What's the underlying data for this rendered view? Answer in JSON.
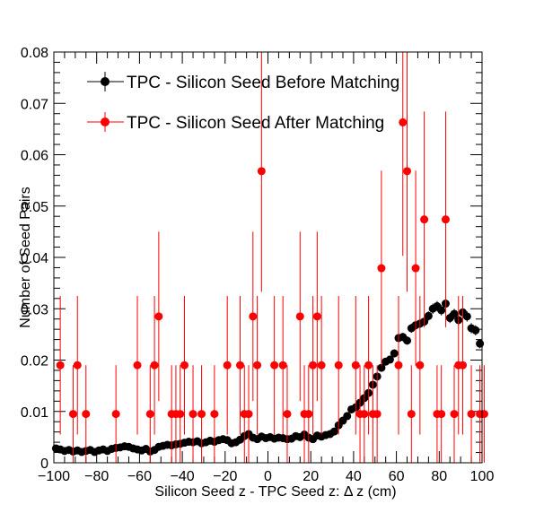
{
  "chart_data": {
    "type": "scatter",
    "title": "",
    "xlabel": "Silicon Seed z - TPC Seed z:   Δ z (cm)",
    "ylabel": "Number of Seed Pairs",
    "xlim": [
      -100,
      100
    ],
    "ylim": [
      0,
      0.08
    ],
    "x_ticks": [
      "−100",
      "−80",
      "−60",
      "−40",
      "−20",
      "0",
      "20",
      "40",
      "60",
      "80",
      "100"
    ],
    "y_ticks": [
      "0",
      "0.01",
      "0.02",
      "0.03",
      "0.04",
      "0.05",
      "0.06",
      "0.07",
      "0.08"
    ],
    "legend_position": "top-left",
    "grid": false,
    "series": [
      {
        "name": "TPC - Silicon Seed Before Matching",
        "color": "#000000",
        "points": [
          [
            -99,
            0.0028,
            0.0003
          ],
          [
            -97,
            0.0026,
            0.0003
          ],
          [
            -95,
            0.0023,
            0.0003
          ],
          [
            -93,
            0.0025,
            0.0003
          ],
          [
            -91,
            0.0022,
            0.0003
          ],
          [
            -89,
            0.0024,
            0.0003
          ],
          [
            -87,
            0.0021,
            0.0003
          ],
          [
            -85,
            0.0023,
            0.0003
          ],
          [
            -83,
            0.0025,
            0.0003
          ],
          [
            -81,
            0.0021,
            0.0003
          ],
          [
            -79,
            0.0024,
            0.0003
          ],
          [
            -77,
            0.0026,
            0.0003
          ],
          [
            -75,
            0.0023,
            0.0003
          ],
          [
            -73,
            0.0027,
            0.0003
          ],
          [
            -71,
            0.0029,
            0.0003
          ],
          [
            -69,
            0.003,
            0.0003
          ],
          [
            -67,
            0.0032,
            0.0003
          ],
          [
            -65,
            0.0031,
            0.0003
          ],
          [
            -63,
            0.0028,
            0.0003
          ],
          [
            -61,
            0.0026,
            0.0003
          ],
          [
            -59,
            0.0024,
            0.0003
          ],
          [
            -57,
            0.0027,
            0.0003
          ],
          [
            -55,
            0.0022,
            0.0003
          ],
          [
            -53,
            0.0025,
            0.0003
          ],
          [
            -51,
            0.0031,
            0.0003
          ],
          [
            -49,
            0.0033,
            0.0003
          ],
          [
            -47,
            0.0035,
            0.0003
          ],
          [
            -45,
            0.0034,
            0.0003
          ],
          [
            -43,
            0.0036,
            0.0003
          ],
          [
            -41,
            0.0037,
            0.0003
          ],
          [
            -39,
            0.0039,
            0.0003
          ],
          [
            -37,
            0.0041,
            0.0003
          ],
          [
            -35,
            0.004,
            0.0003
          ],
          [
            -33,
            0.0042,
            0.0003
          ],
          [
            -31,
            0.0038,
            0.0003
          ],
          [
            -29,
            0.004,
            0.0003
          ],
          [
            -27,
            0.0043,
            0.0003
          ],
          [
            -25,
            0.0041,
            0.0003
          ],
          [
            -23,
            0.0044,
            0.0003
          ],
          [
            -21,
            0.0046,
            0.0003
          ],
          [
            -19,
            0.0044,
            0.0003
          ],
          [
            -17,
            0.0038,
            0.0003
          ],
          [
            -15,
            0.004,
            0.0003
          ],
          [
            -13,
            0.0045,
            0.0003
          ],
          [
            -11,
            0.0052,
            0.0003
          ],
          [
            -9,
            0.0056,
            0.0003
          ],
          [
            -7,
            0.0049,
            0.0003
          ],
          [
            -5,
            0.0046,
            0.0003
          ],
          [
            -3,
            0.0051,
            0.0003
          ],
          [
            -1,
            0.0048,
            0.0003
          ],
          [
            1,
            0.005,
            0.0003
          ],
          [
            3,
            0.0047,
            0.0003
          ],
          [
            5,
            0.0049,
            0.0003
          ],
          [
            7,
            0.0048,
            0.0003
          ],
          [
            9,
            0.0046,
            0.0003
          ],
          [
            11,
            0.0047,
            0.0003
          ],
          [
            13,
            0.0052,
            0.0003
          ],
          [
            15,
            0.005,
            0.0003
          ],
          [
            17,
            0.0055,
            0.0003
          ],
          [
            19,
            0.0049,
            0.0003
          ],
          [
            21,
            0.0046,
            0.0003
          ],
          [
            23,
            0.0053,
            0.0003
          ],
          [
            25,
            0.0051,
            0.0003
          ],
          [
            27,
            0.0054,
            0.0003
          ],
          [
            29,
            0.0056,
            0.0003
          ],
          [
            31,
            0.0061,
            0.0004
          ],
          [
            33,
            0.0073,
            0.0004
          ],
          [
            35,
            0.0082,
            0.0004
          ],
          [
            37,
            0.0091,
            0.0004
          ],
          [
            39,
            0.0104,
            0.0005
          ],
          [
            41,
            0.0108,
            0.0005
          ],
          [
            43,
            0.0117,
            0.0005
          ],
          [
            45,
            0.0126,
            0.0005
          ],
          [
            47,
            0.0136,
            0.0006
          ],
          [
            49,
            0.0152,
            0.0006
          ],
          [
            51,
            0.0168,
            0.0006
          ],
          [
            53,
            0.0185,
            0.0007
          ],
          [
            55,
            0.0197,
            0.0007
          ],
          [
            57,
            0.0201,
            0.0007
          ],
          [
            59,
            0.0213,
            0.0008
          ],
          [
            61,
            0.0243,
            0.0008
          ],
          [
            63,
            0.0245,
            0.0008
          ],
          [
            65,
            0.0238,
            0.0008
          ],
          [
            67,
            0.0262,
            0.0009
          ],
          [
            69,
            0.0268,
            0.0009
          ],
          [
            71,
            0.0271,
            0.0009
          ],
          [
            73,
            0.0275,
            0.0009
          ],
          [
            75,
            0.0286,
            0.0009
          ],
          [
            77,
            0.03,
            0.001
          ],
          [
            79,
            0.0305,
            0.001
          ],
          [
            81,
            0.0297,
            0.001
          ],
          [
            83,
            0.031,
            0.001
          ],
          [
            85,
            0.0282,
            0.001
          ],
          [
            87,
            0.029,
            0.001
          ],
          [
            89,
            0.0278,
            0.001
          ],
          [
            91,
            0.0293,
            0.001
          ],
          [
            93,
            0.0285,
            0.001
          ],
          [
            95,
            0.0262,
            0.001
          ],
          [
            97,
            0.0258,
            0.001
          ],
          [
            99,
            0.0232,
            0.0009
          ]
        ]
      },
      {
        "name": "TPC - Silicon Seed After Matching",
        "color": "#ff0000",
        "points": [
          [
            -97,
            0.019,
            0.0135
          ],
          [
            -91,
            0.0095,
            0.0095
          ],
          [
            -89,
            0.019,
            0.0135
          ],
          [
            -85,
            0.0095,
            0.0095
          ],
          [
            -71,
            0.0095,
            0.0095
          ],
          [
            -61,
            0.019,
            0.0135
          ],
          [
            -55,
            0.0095,
            0.0095
          ],
          [
            -53,
            0.019,
            0.0135
          ],
          [
            -51,
            0.0285,
            0.0165
          ],
          [
            -45,
            0.0095,
            0.0095
          ],
          [
            -43,
            0.0095,
            0.0095
          ],
          [
            -41,
            0.0095,
            0.0095
          ],
          [
            -39,
            0.019,
            0.0135
          ],
          [
            -35,
            0.0095,
            0.0095
          ],
          [
            -31,
            0.0095,
            0.0095
          ],
          [
            -25,
            0.0095,
            0.0095
          ],
          [
            -19,
            0.019,
            0.0135
          ],
          [
            -13,
            0.019,
            0.0135
          ],
          [
            -11,
            0.0095,
            0.0095
          ],
          [
            -9,
            0.0095,
            0.0095
          ],
          [
            -7,
            0.0285,
            0.0165
          ],
          [
            -5,
            0.019,
            0.0135
          ],
          [
            -3,
            0.0568,
            0.0235
          ],
          [
            3,
            0.019,
            0.0135
          ],
          [
            7,
            0.019,
            0.0135
          ],
          [
            9,
            0.0095,
            0.0095
          ],
          [
            15,
            0.0285,
            0.0165
          ],
          [
            17,
            0.0095,
            0.0095
          ],
          [
            19,
            0.0095,
            0.0095
          ],
          [
            21,
            0.019,
            0.0135
          ],
          [
            23,
            0.0285,
            0.0165
          ],
          [
            25,
            0.019,
            0.0135
          ],
          [
            33,
            0.019,
            0.0135
          ],
          [
            41,
            0.019,
            0.0135
          ],
          [
            43,
            0.0095,
            0.0095
          ],
          [
            45,
            0.0095,
            0.0095
          ],
          [
            47,
            0.019,
            0.0135
          ],
          [
            49,
            0.0095,
            0.0095
          ],
          [
            51,
            0.0095,
            0.0095
          ],
          [
            53,
            0.0379,
            0.019
          ],
          [
            61,
            0.019,
            0.0135
          ],
          [
            63,
            0.0663,
            0.026
          ],
          [
            65,
            0.0568,
            0.0235
          ],
          [
            67,
            0.0095,
            0.0095
          ],
          [
            69,
            0.0379,
            0.019
          ],
          [
            71,
            0.019,
            0.0135
          ],
          [
            73,
            0.0474,
            0.021
          ],
          [
            79,
            0.0095,
            0.0095
          ],
          [
            81,
            0.0095,
            0.0095
          ],
          [
            83,
            0.0474,
            0.021
          ],
          [
            87,
            0.0095,
            0.0095
          ],
          [
            89,
            0.019,
            0.0135
          ],
          [
            91,
            0.019,
            0.0135
          ],
          [
            95,
            0.0095,
            0.0095
          ],
          [
            99,
            0.0095,
            0.0095
          ],
          [
            101,
            0.0095,
            0.0095
          ]
        ]
      }
    ]
  }
}
